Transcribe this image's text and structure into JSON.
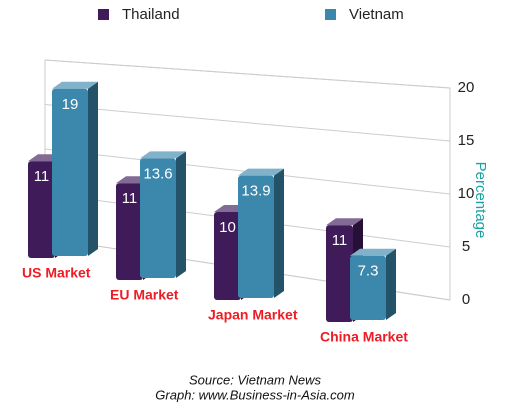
{
  "chart_data": {
    "type": "bar3d",
    "categories": [
      "US Market",
      "EU Market",
      "Japan Market",
      "China Market"
    ],
    "series": [
      {
        "name": "Thailand",
        "color": "#3f1b5a",
        "values": [
          11,
          11,
          10,
          11
        ]
      },
      {
        "name": "Vietnam",
        "color": "#3c88ad",
        "values": [
          19,
          13.6,
          13.9,
          7.3
        ]
      }
    ],
    "ylim": [
      0,
      20
    ],
    "yticks": [
      0,
      5,
      10,
      15,
      20
    ],
    "grid": true,
    "y_label": "Percentage",
    "source": "Source: Vietnam News",
    "credit": "Graph: www.Business-in-Asia.com"
  }
}
